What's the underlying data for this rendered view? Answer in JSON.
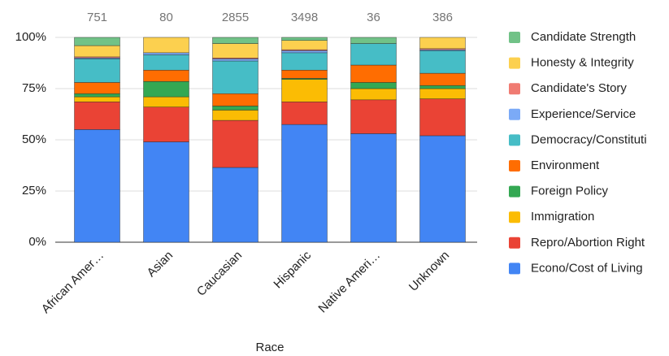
{
  "chart_data": {
    "type": "stacked_bar_100",
    "x_label": "Race",
    "categories": [
      "African Amer…",
      "Asian",
      "Caucasian",
      "Hispanic",
      "Native Ameri…",
      "Unknown"
    ],
    "totals": [
      751,
      80,
      2855,
      3498,
      36,
      386
    ],
    "series": [
      {
        "name": "Econo/Cost of Living",
        "color": "#4285f4",
        "values": [
          55,
          49,
          36.5,
          57.5,
          53,
          52
        ]
      },
      {
        "name": "Repro/Abortion Right",
        "color": "#ea4335",
        "values": [
          13.5,
          17,
          23,
          11,
          16.5,
          18
        ]
      },
      {
        "name": "Immigration",
        "color": "#fbbc04",
        "values": [
          2.5,
          5,
          5,
          11,
          5.5,
          5
        ]
      },
      {
        "name": "Foreign Policy",
        "color": "#34a853",
        "values": [
          1.5,
          7.5,
          2,
          0.5,
          3,
          1.5
        ]
      },
      {
        "name": "Environment",
        "color": "#ff6d01",
        "values": [
          5.5,
          5.5,
          6,
          4,
          8.5,
          6
        ]
      },
      {
        "name": "Democracy/Constituti",
        "color": "#46bdc6",
        "values": [
          11.5,
          7.5,
          16,
          8.5,
          10.5,
          11
        ]
      },
      {
        "name": "Experience/Service",
        "color": "#7baaf7",
        "values": [
          0.5,
          1,
          1,
          1,
          0,
          0.5
        ]
      },
      {
        "name": "Candidate's Story",
        "color": "#f07b72",
        "values": [
          0.5,
          0,
          0.5,
          0.5,
          0,
          0.5
        ]
      },
      {
        "name": "Honesty & Integrity",
        "color": "#fcd04f",
        "values": [
          5.5,
          7.5,
          7,
          4.5,
          0,
          5.5
        ]
      },
      {
        "name": "Candidate Strength",
        "color": "#71c287",
        "values": [
          4,
          0,
          3,
          1.5,
          3,
          0
        ]
      }
    ],
    "ylim": [
      0,
      100
    ],
    "yticks": [
      {
        "value": 0,
        "label": "0%"
      },
      {
        "value": 25,
        "label": "25%"
      },
      {
        "value": 50,
        "label": "50%"
      },
      {
        "value": 75,
        "label": "75%"
      },
      {
        "value": 100,
        "label": "100%"
      }
    ],
    "grid": true
  }
}
